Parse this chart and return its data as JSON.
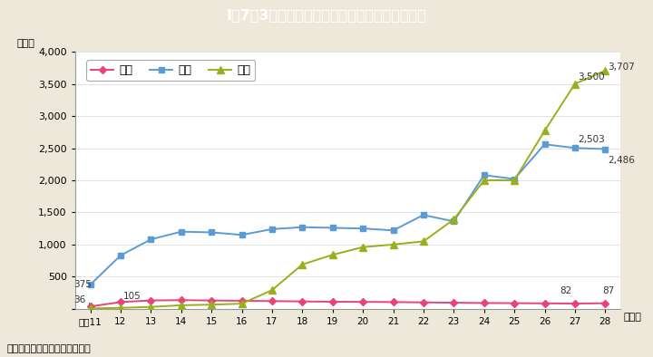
{
  "title": "I－7－3図　夫から妻への犯罪の検挙件数の推移",
  "title_bg_color": "#1ab4cc",
  "title_text_color": "#ffffff",
  "bg_color": "#ede8da",
  "plot_bg_color": "#ffffff",
  "ylabel": "（件）",
  "xlabel_suffix": "（年）",
  "x_labels": [
    "平成11",
    "12",
    "13",
    "14",
    "15",
    "16",
    "17",
    "18",
    "19",
    "20",
    "21",
    "22",
    "23",
    "24",
    "25",
    "26",
    "27",
    "28"
  ],
  "satsujin": [
    36,
    105,
    130,
    135,
    130,
    125,
    120,
    115,
    110,
    108,
    105,
    100,
    95,
    90,
    88,
    85,
    82,
    87
  ],
  "shogai": [
    375,
    830,
    1080,
    1200,
    1190,
    1150,
    1240,
    1270,
    1260,
    1250,
    1220,
    1460,
    1360,
    2080,
    2020,
    2560,
    2503,
    2486
  ],
  "boko": [
    5,
    15,
    30,
    55,
    65,
    80,
    290,
    690,
    840,
    960,
    1000,
    1050,
    1390,
    2000,
    2000,
    2770,
    3500,
    3707
  ],
  "satsujin_color": "#e8437a",
  "shogai_color": "#5b9bd5",
  "boko_color": "#9aaf1e",
  "footnote": "（備考）警察庁資料より作成。",
  "ylim": [
    0,
    4000
  ],
  "yticks": [
    0,
    500,
    1000,
    1500,
    2000,
    2500,
    3000,
    3500,
    4000
  ],
  "legend_labels": [
    "殺人",
    "傷害",
    "暴行"
  ]
}
